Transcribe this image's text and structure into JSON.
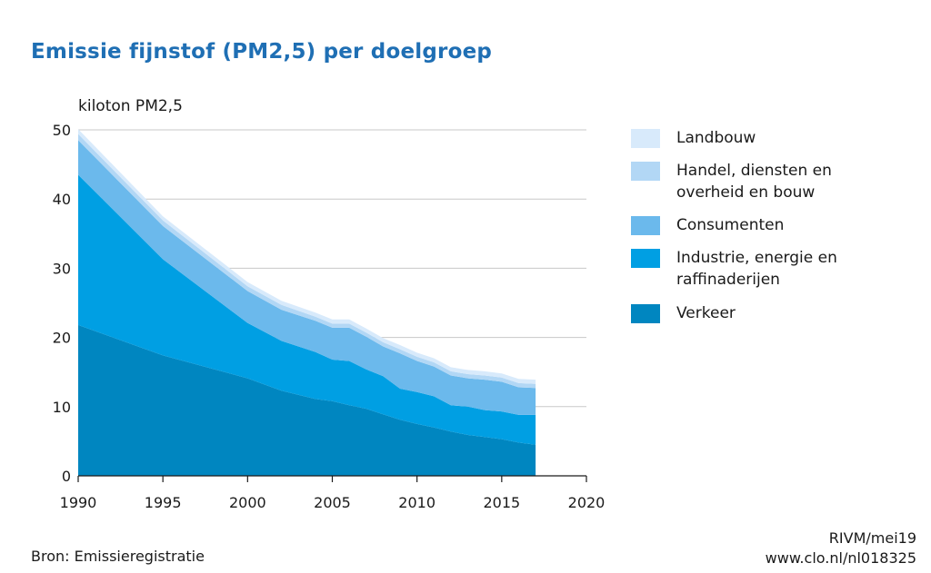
{
  "title": "Emissie fijnstof (PM2,5) per doelgroep",
  "unit_label": "kiloton PM2,5",
  "source": "Bron: Emissieregistratie",
  "credit_line1": "RIVM/mei19",
  "credit_line2": "www.clo.nl/nl018325",
  "colors": {
    "Verkeer": "#0086c0",
    "Industrie, energie en raffinaderijen": "#009fe3",
    "Consumenten": "#6bb9ec",
    "Handel, diensten en overheid en bouw": "#b2d7f5",
    "Landbouw": "#d8eafb"
  },
  "legend": [
    {
      "label": "Landbouw",
      "color": "#d8eafb"
    },
    {
      "label": "Handel, diensten en overheid en bouw",
      "color": "#b2d7f5"
    },
    {
      "label": "Consumenten",
      "color": "#6bb9ec"
    },
    {
      "label": "Industrie, energie en raffinaderijen",
      "color": "#009fe3"
    },
    {
      "label": "Verkeer",
      "color": "#0086c0"
    }
  ],
  "chart_data": {
    "type": "area",
    "stacked": true,
    "title": "Emissie fijnstof (PM2,5) per doelgroep",
    "ylabel": "kiloton PM2,5",
    "xlabel": "",
    "xlim": [
      1990,
      2020
    ],
    "ylim": [
      0,
      50
    ],
    "xticks": [
      1990,
      1995,
      2000,
      2005,
      2010,
      2015,
      2020
    ],
    "yticks": [
      0,
      10,
      20,
      30,
      40,
      50
    ],
    "grid": true,
    "legend_position": "right",
    "x": [
      1990,
      1995,
      2000,
      2002,
      2004,
      2005,
      2006,
      2007,
      2008,
      2009,
      2010,
      2011,
      2012,
      2013,
      2014,
      2015,
      2016,
      2017
    ],
    "series": [
      {
        "name": "Verkeer",
        "values": [
          21.8,
          17.4,
          14.1,
          12.3,
          11.1,
          10.8,
          10.2,
          9.7,
          8.9,
          8.1,
          7.5,
          7.0,
          6.4,
          5.9,
          5.6,
          5.3,
          4.8,
          4.5
        ]
      },
      {
        "name": "Industrie, energie en raffinaderijen",
        "values": [
          21.7,
          13.9,
          8.0,
          7.2,
          6.8,
          6.0,
          6.4,
          5.7,
          5.5,
          4.5,
          4.6,
          4.5,
          3.8,
          4.1,
          3.9,
          4.0,
          4.0,
          4.3
        ]
      },
      {
        "name": "Consumenten",
        "values": [
          5.0,
          4.8,
          4.6,
          4.5,
          4.5,
          4.6,
          4.8,
          4.7,
          4.3,
          5.1,
          4.5,
          4.3,
          4.3,
          4.1,
          4.4,
          4.3,
          4.0,
          3.9
        ]
      },
      {
        "name": "Handel, diensten en overheid en bouw",
        "values": [
          0.9,
          0.8,
          0.7,
          0.7,
          0.6,
          0.6,
          0.6,
          0.6,
          0.6,
          0.6,
          0.6,
          0.6,
          0.6,
          0.6,
          0.6,
          0.6,
          0.6,
          0.6
        ]
      },
      {
        "name": "Landbouw",
        "values": [
          0.7,
          0.6,
          0.6,
          0.6,
          0.6,
          0.6,
          0.6,
          0.6,
          0.6,
          0.6,
          0.6,
          0.6,
          0.6,
          0.6,
          0.6,
          0.6,
          0.6,
          0.6
        ]
      }
    ]
  }
}
